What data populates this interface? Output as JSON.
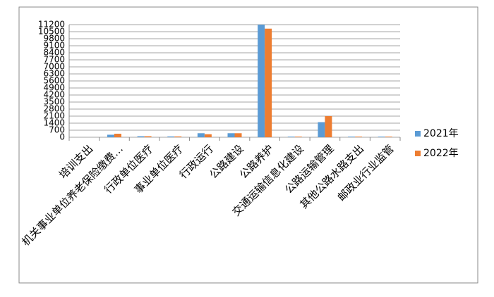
{
  "chart_data": {
    "type": "bar",
    "categories": [
      "培训支出",
      "机关事业单位养老保险缴费…",
      "行政单位医疗",
      "事业单位医疗",
      "行政运行",
      "公路建设",
      "公路养护",
      "交通运输信息化建设",
      "公路运输管理",
      "其他公路水路支出",
      "邮政业行业监管"
    ],
    "series": [
      {
        "name": "2021年",
        "color": "#5b9bd5",
        "values": [
          0,
          250,
          100,
          80,
          400,
          400,
          11200,
          60,
          1500,
          60,
          60
        ]
      },
      {
        "name": "2022年",
        "color": "#ed7d31",
        "values": [
          0,
          350,
          100,
          80,
          300,
          400,
          10800,
          60,
          2100,
          60,
          60
        ]
      }
    ],
    "ylim": [
      0,
      11200
    ],
    "yticks": [
      0,
      700,
      1400,
      2100,
      2800,
      3500,
      4200,
      4900,
      5600,
      6300,
      7000,
      7700,
      8400,
      9100,
      9800,
      10500,
      11200
    ],
    "grid": true,
    "legend": "right"
  }
}
